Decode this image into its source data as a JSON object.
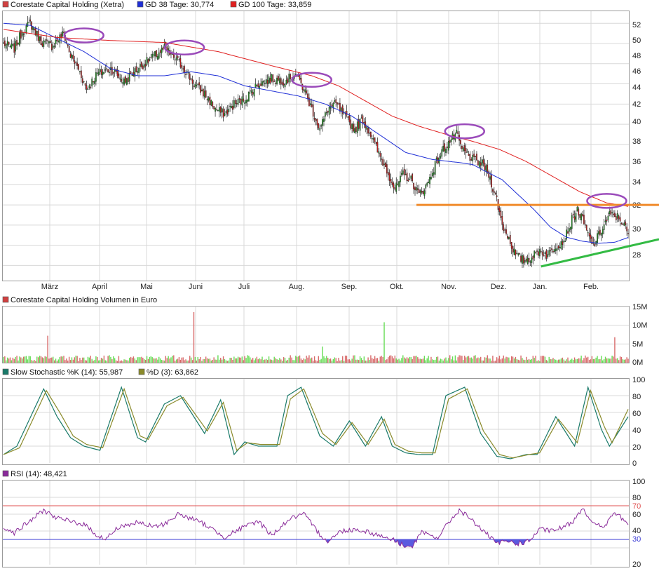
{
  "colors": {
    "price_legend": "#d04040",
    "gd38": "#1f2fd6",
    "gd100": "#e02020",
    "candle_up": "#1f9a1f",
    "candle_down": "#c81e1e",
    "vol_up": "#66dd55",
    "vol_down": "#d86a6a",
    "stoch_k": "#1a7a6a",
    "stoch_d": "#8a8a2a",
    "rsi": "#8a2a9a",
    "rsi_fill": "#5a5adf",
    "orange_line": "#f08a2a",
    "green_line": "#33bb44",
    "circle": "#9a4aba",
    "grid": "#d8d8d8"
  },
  "price_panel": {
    "legend": [
      {
        "label": "Corestate Capital Holding (Xetra)",
        "color": "#d04040"
      },
      {
        "label": "GD 38 Tage: 30,774",
        "color": "#1f2fd6"
      },
      {
        "label": "GD 100 Tage: 33,859",
        "color": "#e02020"
      }
    ],
    "y_ticks": [
      "52",
      "50",
      "48",
      "46",
      "44",
      "42",
      "40",
      "38",
      "36",
      "34",
      "32",
      "30",
      "28"
    ],
    "months": [
      "März",
      "April",
      "Mai",
      "Juni",
      "Juli",
      "Aug.",
      "Sep.",
      "Okt.",
      "Nov.",
      "Dez.",
      "Jan.",
      "Feb."
    ]
  },
  "volume_panel": {
    "legend": [
      {
        "label": "Corestate Capital Holding Volumen in Euro",
        "color": "#d04040"
      }
    ],
    "y_ticks": [
      "15M",
      "10M",
      "5M",
      "0M"
    ]
  },
  "stoch_panel": {
    "legend": [
      {
        "label": "Slow Stochastic %K (14): 55,987",
        "color": "#1a7a6a"
      },
      {
        "label": "%D (3): 63,862",
        "color": "#8a8a2a"
      }
    ],
    "y_ticks": [
      "100",
      "80",
      "60",
      "40",
      "20",
      "0"
    ]
  },
  "rsi_panel": {
    "legend": [
      {
        "label": "RSI (14): 48,421",
        "color": "#8a2a9a"
      }
    ],
    "y_ticks": [
      "100",
      "80",
      "60",
      "40",
      "20"
    ],
    "ref_labels": [
      "70",
      "30"
    ]
  },
  "chart_data": [
    {
      "type": "candlestick",
      "title": "Corestate Capital Holding (Xetra)",
      "ylim": [
        26.5,
        53.2
      ],
      "x_categories": [
        "März",
        "April",
        "Mai",
        "Juni",
        "Juli",
        "Aug.",
        "Sep.",
        "Okt.",
        "Nov.",
        "Dez.",
        "Jan.",
        "Feb."
      ],
      "close_anchors": [
        [
          0,
          50.0
        ],
        [
          8,
          49.5
        ],
        [
          14,
          51.2
        ],
        [
          20,
          52.0
        ],
        [
          28,
          50.2
        ],
        [
          36,
          49.8
        ],
        [
          45,
          51.0
        ],
        [
          50,
          48.8
        ],
        [
          56,
          47.5
        ],
        [
          62,
          45.5
        ],
        [
          70,
          47.0
        ],
        [
          80,
          47.5
        ],
        [
          90,
          46.2
        ],
        [
          100,
          47.5
        ],
        [
          110,
          48.5
        ],
        [
          120,
          49.5
        ],
        [
          128,
          48.5
        ],
        [
          135,
          47.5
        ],
        [
          142,
          46.0
        ],
        [
          150,
          45.0
        ],
        [
          158,
          43.5
        ],
        [
          165,
          43.0
        ],
        [
          172,
          44.0
        ],
        [
          180,
          44.5
        ],
        [
          190,
          46.0
        ],
        [
          200,
          46.5
        ],
        [
          210,
          46.3
        ],
        [
          218,
          47.0
        ],
        [
          224,
          45.5
        ],
        [
          230,
          43.5
        ],
        [
          236,
          41.5
        ],
        [
          242,
          43.5
        ],
        [
          248,
          44.0
        ],
        [
          256,
          42.5
        ],
        [
          262,
          41.5
        ],
        [
          268,
          42.5
        ],
        [
          274,
          41.0
        ],
        [
          280,
          39.0
        ],
        [
          286,
          37.5
        ],
        [
          292,
          35.5
        ],
        [
          298,
          37.0
        ],
        [
          304,
          36.5
        ],
        [
          310,
          35.0
        ],
        [
          316,
          36.0
        ],
        [
          322,
          38.0
        ],
        [
          328,
          39.5
        ],
        [
          334,
          40.5
        ],
        [
          338,
          41.0
        ],
        [
          342,
          39.5
        ],
        [
          350,
          38.5
        ],
        [
          358,
          38.0
        ],
        [
          362,
          37.0
        ],
        [
          368,
          34.5
        ],
        [
          372,
          32.0
        ],
        [
          376,
          31.0
        ],
        [
          382,
          29.0
        ],
        [
          388,
          28.5
        ],
        [
          394,
          28.8
        ],
        [
          400,
          29.5
        ],
        [
          406,
          29.0
        ],
        [
          412,
          30.0
        ],
        [
          418,
          30.5
        ],
        [
          424,
          32.5
        ],
        [
          428,
          33.5
        ],
        [
          432,
          32.5
        ],
        [
          436,
          31.0
        ],
        [
          440,
          30.0
        ],
        [
          446,
          31.5
        ],
        [
          452,
          33.0
        ],
        [
          458,
          32.8
        ],
        [
          462,
          32.3
        ],
        [
          466,
          31.0
        ]
      ],
      "series": [
        {
          "name": "GD 38 Tage",
          "last": 30.774,
          "anchors": [
            [
              0,
              52.0
            ],
            [
              20,
              51.8
            ],
            [
              40,
              50.5
            ],
            [
              60,
              49.2
            ],
            [
              80,
              47.5
            ],
            [
              100,
              46.8
            ],
            [
              120,
              46.8
            ],
            [
              140,
              47.2
            ],
            [
              160,
              46.8
            ],
            [
              180,
              45.8
            ],
            [
              200,
              45.3
            ],
            [
              220,
              44.8
            ],
            [
              240,
              44.0
            ],
            [
              260,
              42.8
            ],
            [
              280,
              41.0
            ],
            [
              300,
              39.2
            ],
            [
              320,
              38.5
            ],
            [
              340,
              38.2
            ],
            [
              350,
              38.0
            ],
            [
              360,
              37.3
            ],
            [
              372,
              36.5
            ],
            [
              384,
              35.0
            ],
            [
              396,
              33.5
            ],
            [
              408,
              31.8
            ],
            [
              420,
              30.8
            ],
            [
              432,
              30.4
            ],
            [
              444,
              30.2
            ],
            [
              456,
              30.3
            ],
            [
              466,
              30.774
            ]
          ]
        },
        {
          "name": "GD 100 Tage",
          "last": 33.859,
          "anchors": [
            [
              0,
              51.4
            ],
            [
              40,
              50.6
            ],
            [
              80,
              50.3
            ],
            [
              120,
              50.1
            ],
            [
              160,
              49.2
            ],
            [
              200,
              47.8
            ],
            [
              230,
              46.8
            ],
            [
              250,
              45.8
            ],
            [
              270,
              44.3
            ],
            [
              290,
              42.8
            ],
            [
              310,
              41.8
            ],
            [
              330,
              41.0
            ],
            [
              350,
              40.3
            ],
            [
              370,
              39.5
            ],
            [
              390,
              38.3
            ],
            [
              410,
              36.8
            ],
            [
              430,
              35.3
            ],
            [
              450,
              34.2
            ],
            [
              466,
              33.859
            ]
          ]
        }
      ],
      "annotations": {
        "horizontal_resistance": 34.0,
        "support_line": [
          [
            401,
            27.9
          ],
          [
            490,
            30.6
          ]
        ],
        "highlight_circles": [
          [
            60,
            50.8
          ],
          [
            135,
            49.6
          ],
          [
            230,
            46.4
          ],
          [
            344,
            41.3
          ],
          [
            450,
            34.4
          ]
        ]
      }
    },
    {
      "type": "bar",
      "title": "Corestate Capital Holding Volumen in Euro",
      "ylim": [
        0,
        15
      ],
      "unit": "M",
      "spikes": [
        [
          19,
          1.8
        ],
        [
          33,
          7.2
        ],
        [
          142,
          13.5
        ],
        [
          238,
          4.3
        ],
        [
          284,
          10.8
        ],
        [
          456,
          6.8
        ]
      ]
    },
    {
      "type": "line",
      "title": "Slow Stochastic",
      "ylim": [
        0,
        100
      ],
      "series": [
        {
          "name": "Slow Stochastic %K (14)",
          "last": 55.987,
          "anchors": [
            [
              0,
              10
            ],
            [
              10,
              20
            ],
            [
              30,
              88
            ],
            [
              40,
              55
            ],
            [
              50,
              30
            ],
            [
              60,
              20
            ],
            [
              72,
              15
            ],
            [
              88,
              90
            ],
            [
              100,
              30
            ],
            [
              106,
              25
            ],
            [
              120,
              70
            ],
            [
              132,
              80
            ],
            [
              150,
              35
            ],
            [
              162,
              75
            ],
            [
              172,
              10
            ],
            [
              180,
              25
            ],
            [
              190,
              20
            ],
            [
              196,
              20
            ],
            [
              204,
              20
            ],
            [
              212,
              80
            ],
            [
              222,
              90
            ],
            [
              236,
              32
            ],
            [
              246,
              20
            ],
            [
              258,
              50
            ],
            [
              270,
              20
            ],
            [
              282,
              55
            ],
            [
              290,
              20
            ],
            [
              300,
              12
            ],
            [
              310,
              10
            ],
            [
              320,
              10
            ],
            [
              330,
              80
            ],
            [
              344,
              90
            ],
            [
              356,
              35
            ],
            [
              368,
              8
            ],
            [
              378,
              5
            ],
            [
              390,
              10
            ],
            [
              398,
              10
            ],
            [
              412,
              55
            ],
            [
              426,
              20
            ],
            [
              436,
              90
            ],
            [
              446,
              40
            ],
            [
              452,
              20
            ],
            [
              466,
              55
            ]
          ]
        },
        {
          "name": "%D (3)",
          "last": 63.862,
          "anchors": [
            [
              0,
              10
            ],
            [
              12,
              18
            ],
            [
              32,
              86
            ],
            [
              42,
              60
            ],
            [
              52,
              32
            ],
            [
              62,
              22
            ],
            [
              74,
              18
            ],
            [
              90,
              88
            ],
            [
              102,
              32
            ],
            [
              108,
              28
            ],
            [
              122,
              68
            ],
            [
              134,
              78
            ],
            [
              152,
              38
            ],
            [
              164,
              72
            ],
            [
              174,
              15
            ],
            [
              182,
              24
            ],
            [
              192,
              22
            ],
            [
              198,
              22
            ],
            [
              206,
              22
            ],
            [
              214,
              76
            ],
            [
              224,
              88
            ],
            [
              238,
              35
            ],
            [
              248,
              22
            ],
            [
              260,
              48
            ],
            [
              272,
              22
            ],
            [
              284,
              52
            ],
            [
              292,
              22
            ],
            [
              302,
              14
            ],
            [
              312,
              12
            ],
            [
              322,
              12
            ],
            [
              332,
              76
            ],
            [
              346,
              88
            ],
            [
              358,
              38
            ],
            [
              370,
              10
            ],
            [
              380,
              6
            ],
            [
              392,
              10
            ],
            [
              400,
              12
            ],
            [
              414,
              52
            ],
            [
              428,
              24
            ],
            [
              438,
              86
            ],
            [
              448,
              44
            ],
            [
              454,
              24
            ],
            [
              466,
              63.862
            ]
          ]
        }
      ]
    },
    {
      "type": "line",
      "title": "RSI",
      "ylim": [
        0,
        100
      ],
      "reference_lines": [
        70,
        30
      ],
      "series": [
        {
          "name": "RSI (14)",
          "last": 48.421,
          "anchors": [
            [
              0,
              45
            ],
            [
              8,
              38
            ],
            [
              20,
              52
            ],
            [
              30,
              65
            ],
            [
              40,
              55
            ],
            [
              60,
              48
            ],
            [
              70,
              35
            ],
            [
              76,
              30
            ],
            [
              86,
              45
            ],
            [
              100,
              50
            ],
            [
              112,
              45
            ],
            [
              120,
              48
            ],
            [
              130,
              60
            ],
            [
              140,
              55
            ],
            [
              150,
              48
            ],
            [
              165,
              33
            ],
            [
              176,
              42
            ],
            [
              190,
              52
            ],
            [
              200,
              35
            ],
            [
              214,
              55
            ],
            [
              224,
              60
            ],
            [
              236,
              36
            ],
            [
              242,
              28
            ],
            [
              252,
              40
            ],
            [
              262,
              42
            ],
            [
              270,
              40
            ],
            [
              280,
              35
            ],
            [
              290,
              30
            ],
            [
              296,
              25
            ],
            [
              304,
              20
            ],
            [
              312,
              38
            ],
            [
              324,
              32
            ],
            [
              332,
              50
            ],
            [
              340,
              65
            ],
            [
              348,
              55
            ],
            [
              358,
              40
            ],
            [
              368,
              25
            ],
            [
              376,
              28
            ],
            [
              384,
              25
            ],
            [
              392,
              28
            ],
            [
              400,
              42
            ],
            [
              410,
              40
            ],
            [
              418,
              45
            ],
            [
              424,
              50
            ],
            [
              432,
              68
            ],
            [
              440,
              48
            ],
            [
              448,
              45
            ],
            [
              456,
              62
            ],
            [
              466,
              48.421
            ]
          ]
        }
      ]
    }
  ]
}
